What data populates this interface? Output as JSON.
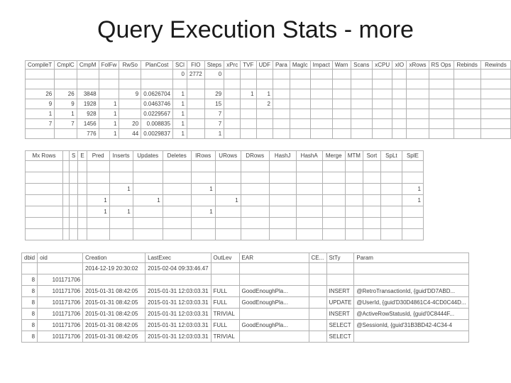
{
  "slide": {
    "title": "Query Execution Stats - more"
  },
  "colors": {
    "grid_border": "#b2b2b2",
    "text": "#3d3d3d",
    "title_text": "#1a1a1a"
  },
  "table1": {
    "headers": [
      "CompileT",
      "CmplC",
      "CmpM",
      "FolFw",
      "RwSo",
      "PlanCost",
      "SCl",
      "FIO",
      "Steps",
      "xPrc",
      "TVF",
      "UDF",
      "Para",
      "MagIc",
      "Impact",
      "Warn",
      "Scans",
      "xCPU",
      "xIO",
      "xRows",
      "RS Ops",
      "Rebinds",
      "Rewinds"
    ],
    "rows": [
      [
        "",
        "",
        "",
        "",
        "",
        "",
        "0",
        "2772",
        "0",
        "",
        "",
        "",
        "",
        "",
        "",
        "",
        "",
        "",
        "",
        "",
        "",
        "",
        ""
      ],
      [
        "",
        "",
        "",
        "",
        "",
        "",
        "",
        "",
        "",
        "",
        "",
        "",
        "",
        "",
        "",
        "",
        "",
        "",
        "",
        "",
        "",
        "",
        ""
      ],
      [
        "26",
        "26",
        "3848",
        "",
        "9",
        "0.0626704",
        "1",
        "",
        "29",
        "",
        "1",
        "1",
        "",
        "",
        "",
        "",
        "",
        "",
        "",
        "",
        "",
        "",
        ""
      ],
      [
        "9",
        "9",
        "1928",
        "1",
        "",
        "0.0463746",
        "1",
        "",
        "15",
        "",
        "",
        "2",
        "",
        "",
        "",
        "",
        "",
        "",
        "",
        "",
        "",
        "",
        ""
      ],
      [
        "1",
        "1",
        "928",
        "1",
        "",
        "0.0229567",
        "1",
        "",
        "7",
        "",
        "",
        "",
        "",
        "",
        "",
        "",
        "",
        "",
        "",
        "",
        "",
        "",
        ""
      ],
      [
        "7",
        "7",
        "1456",
        "1",
        "20",
        "0.008835",
        "1",
        "",
        "7",
        "",
        "",
        "",
        "",
        "",
        "",
        "",
        "",
        "",
        "",
        "",
        "",
        "",
        ""
      ],
      [
        "",
        "",
        "776",
        "1",
        "44",
        "0.0029837",
        "1",
        "",
        "1",
        "",
        "",
        "",
        "",
        "",
        "",
        "",
        "",
        "",
        "",
        "",
        "",
        "",
        ""
      ]
    ]
  },
  "table2": {
    "headers": [
      "Mx Rows",
      "",
      "S",
      "E",
      "Pred",
      "Inserts",
      "Updates",
      "Deletes",
      "IRows",
      "URows",
      "DRows",
      "HashJ",
      "HashA",
      "Merge",
      "MTM",
      "Sort",
      "SpLt",
      "SplE"
    ],
    "rows": [
      [
        "",
        "",
        "",
        "",
        "",
        "",
        "",
        "",
        "",
        "",
        "",
        "",
        "",
        "",
        "",
        "",
        "",
        ""
      ],
      [
        "",
        "",
        "",
        "",
        "",
        "",
        "",
        "",
        "",
        "",
        "",
        "",
        "",
        "",
        "",
        "",
        "",
        ""
      ],
      [
        "",
        "",
        "",
        "",
        "",
        "1",
        "",
        "",
        "1",
        "",
        "",
        "",
        "",
        "",
        "",
        "",
        "",
        "1"
      ],
      [
        "",
        "",
        "",
        "",
        "1",
        "",
        "1",
        "",
        "",
        "1",
        "",
        "",
        "",
        "",
        "",
        "",
        "",
        "1"
      ],
      [
        "",
        "",
        "",
        "",
        "1",
        "1",
        "",
        "",
        "1",
        "",
        "",
        "",
        "",
        "",
        "",
        "",
        "",
        ""
      ],
      [
        "",
        "",
        "",
        "",
        "",
        "",
        "",
        "",
        "",
        "",
        "",
        "",
        "",
        "",
        "",
        "",
        "",
        ""
      ],
      [
        "",
        "",
        "",
        "",
        "",
        "",
        "",
        "",
        "",
        "",
        "",
        "",
        "",
        "",
        "",
        "",
        "",
        ""
      ]
    ]
  },
  "table3": {
    "headers": [
      "dbid",
      "oid",
      "Creation",
      "LastExec",
      "OutLev",
      "EAR",
      "CE...",
      "StTy",
      "Param"
    ],
    "rows": [
      [
        "",
        "",
        "2014-12-19 20:30:02",
        "2015-02-04 09:33:46.47",
        "",
        "",
        "",
        "",
        ""
      ],
      [
        "8",
        "101171706",
        "",
        "",
        "",
        "",
        "",
        "",
        ""
      ],
      [
        "8",
        "101171706",
        "2015-01-31 08:42:05",
        "2015-01-31 12:03:03.31",
        "FULL",
        "GoodEnoughPla...",
        "",
        "INSERT",
        "@RetroTransactionId, {guid'DD7ABD..."
      ],
      [
        "8",
        "101171706",
        "2015-01-31 08:42:05",
        "2015-01-31 12:03:03.31",
        "FULL",
        "GoodEnoughPla...",
        "",
        "UPDATE",
        "@UserId, {guid'D30D4861C4-4CD0C44D..."
      ],
      [
        "8",
        "101171706",
        "2015-01-31 08:42:05",
        "2015-01-31 12:03:03.31",
        "TRIVIAL",
        "",
        "",
        "INSERT",
        "@ActiveRowStatusId, {guid'0C8444F..."
      ],
      [
        "8",
        "101171706",
        "2015-01-31 08:42:05",
        "2015-01-31 12:03:03.31",
        "FULL",
        "GoodEnoughPla...",
        "",
        "SELECT",
        "@SessionId, {guid'31B3BD42-4C34-4"
      ],
      [
        "8",
        "101171706",
        "2015-01-31 08:42:05",
        "2015-01-31 12:03:03.31",
        "TRIVIAL",
        "",
        "",
        "SELECT",
        ""
      ]
    ]
  }
}
